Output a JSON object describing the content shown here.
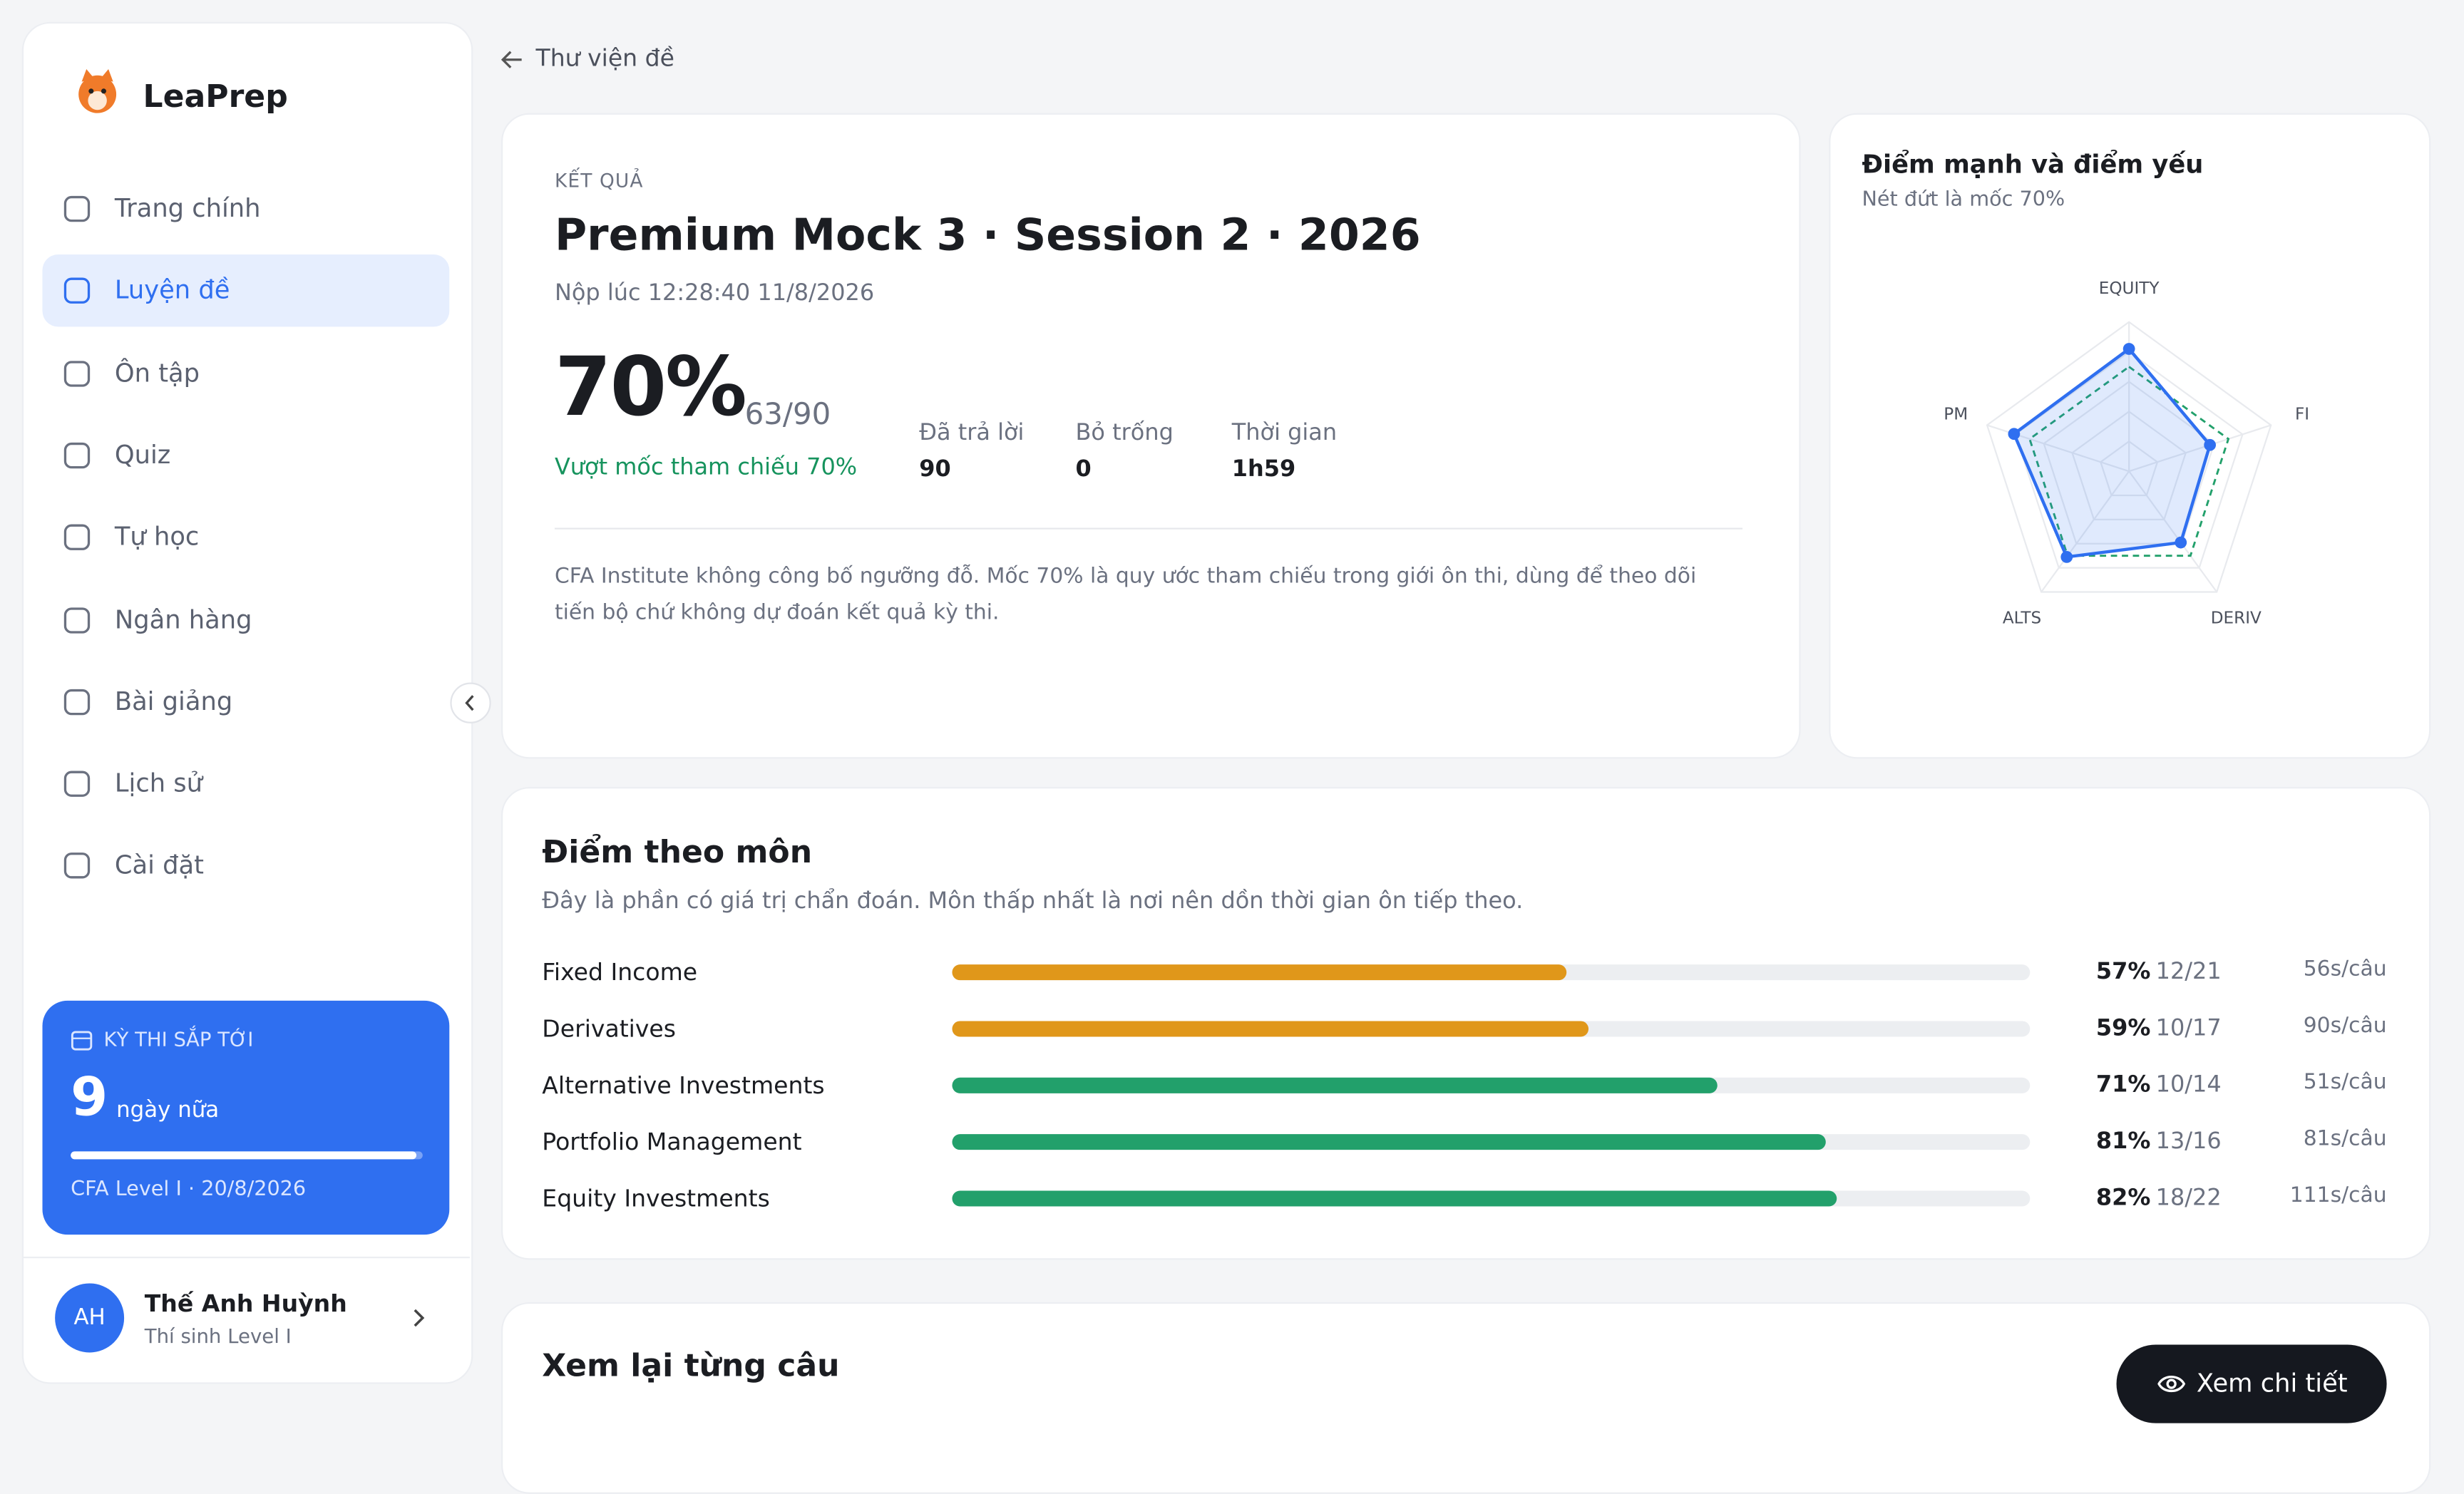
{
  "sidebar": {
    "brand": "LeaPrep",
    "nav": [
      "Trang chính",
      "Luyện đề",
      "Ôn tập",
      "Quiz",
      "Tự học",
      "Ngân hàng",
      "Bài giảng",
      "Lịch sử",
      "Cài đặt"
    ],
    "active": 1
  },
  "upcoming": {
    "label": "KỲ THI SẮP TỚI",
    "days": "9",
    "days_suffix": "ngày nữa",
    "exam": "CFA Level I · 20/8/2026"
  },
  "user": {
    "initials": "AH",
    "name": "Thế Anh Huỳnh",
    "role": "Thí sinh Level I"
  },
  "back": "Thư viện đề",
  "result": {
    "eyebrow": "KẾT QUẢ",
    "title": "Premium Mock 3 · Session 2 · 2026",
    "submitted": "Nộp lúc 12:28:40 11/8/2026",
    "score": "70%",
    "fraction": "63/90",
    "status": "Vượt mốc tham chiếu 70%",
    "stats": [
      {
        "label": "Đã trả lời",
        "value": "90"
      },
      {
        "label": "Bỏ trống",
        "value": "0"
      },
      {
        "label": "Thời gian",
        "value": "1h59"
      }
    ],
    "note": "CFA Institute không công bố ngưỡng đỗ. Mốc 70% là quy ước tham chiếu trong giới ôn thi, dùng để theo dõi tiến bộ chứ không dự đoán kết quả kỳ thi."
  },
  "radar": {
    "title": "Điểm mạnh và điểm yếu",
    "subtitle": "Nét đứt là mốc 70%",
    "axes": [
      "EQUITY",
      "FI",
      "DERIV",
      "ALTS",
      "PM"
    ],
    "values": [
      82,
      57,
      59,
      71,
      81
    ],
    "reference": 70,
    "max": 100,
    "color": "#2f6ff0"
  },
  "subjects": {
    "title": "Điểm theo môn",
    "subtitle": "Đây là phần có giá trị chẩn đoán. Môn thấp nhất là nơi nên dồn thời gian ôn tiếp theo.",
    "rows": [
      {
        "name": "Fixed Income",
        "percent": 57,
        "percent_label": "57%",
        "count": "12/21",
        "pace": "56s/câu",
        "color": "#e0971a"
      },
      {
        "name": "Derivatives",
        "percent": 59,
        "percent_label": "59%",
        "count": "10/17",
        "pace": "90s/câu",
        "color": "#e0971a"
      },
      {
        "name": "Alternative Investments",
        "percent": 71,
        "percent_label": "71%",
        "count": "10/14",
        "pace": "51s/câu",
        "color": "#22a06b"
      },
      {
        "name": "Portfolio Management",
        "percent": 81,
        "percent_label": "81%",
        "count": "13/16",
        "pace": "81s/câu",
        "color": "#22a06b"
      },
      {
        "name": "Equity Investments",
        "percent": 82,
        "percent_label": "82%",
        "count": "18/22",
        "pace": "111s/câu",
        "color": "#22a06b"
      }
    ]
  },
  "review": {
    "title": "Xem lại từng câu",
    "button": "Xem chi tiết"
  }
}
